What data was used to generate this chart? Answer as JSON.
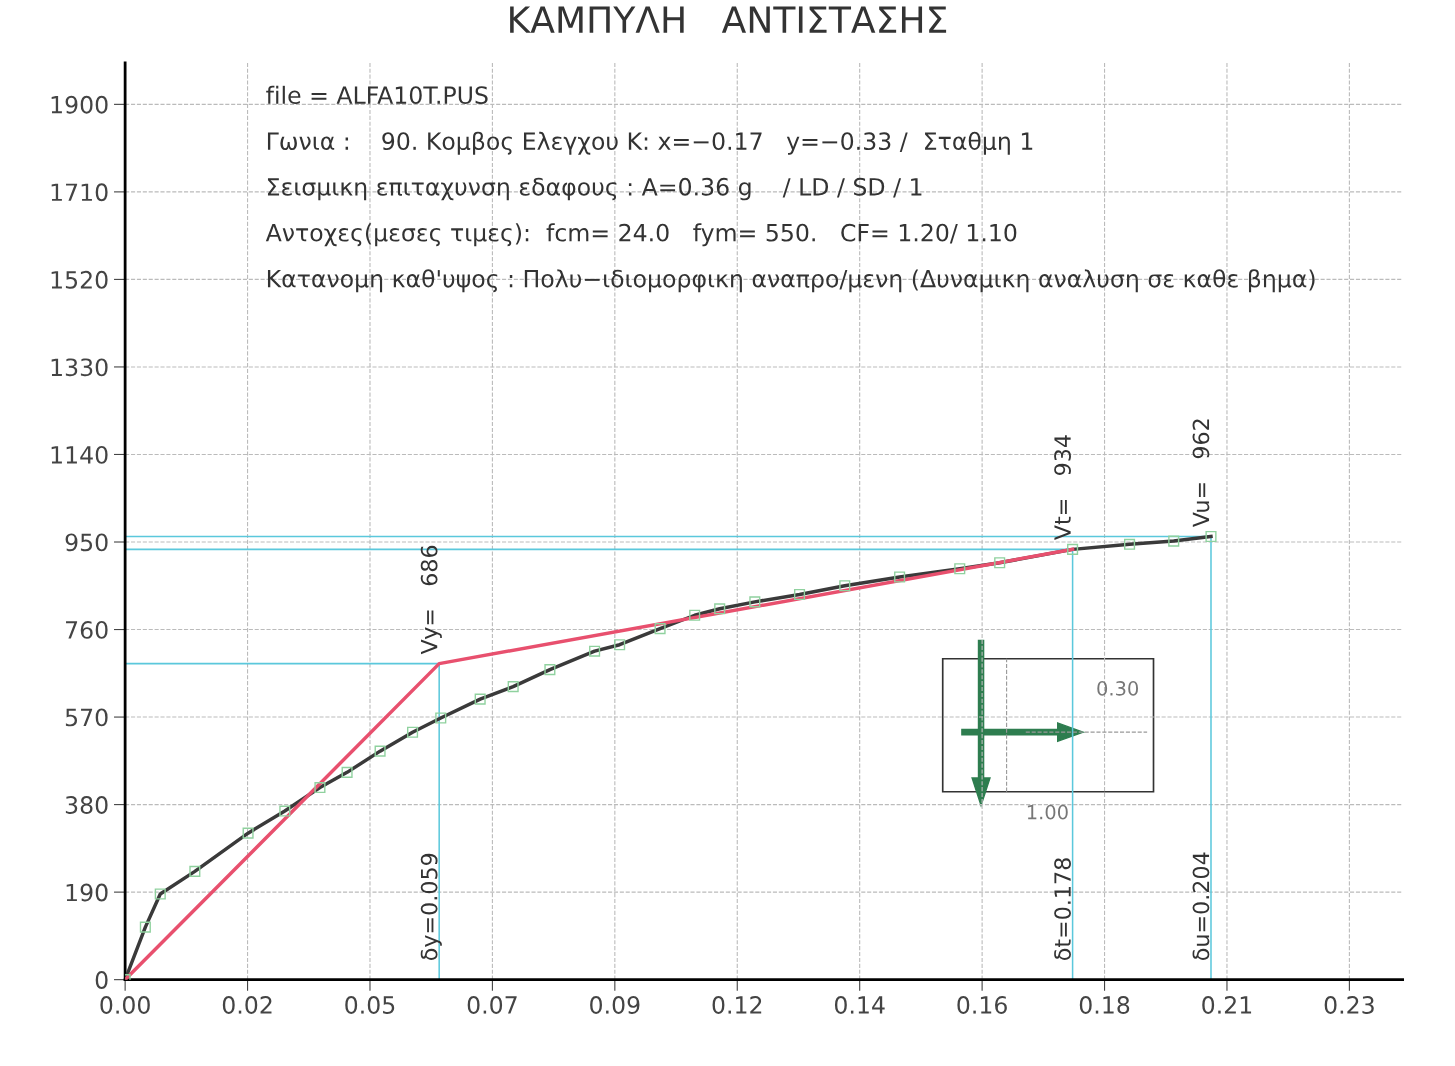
{
  "chart_data": {
    "type": "line",
    "title": "ΚΑΜΠΥΛΗ   ΑΝΤΙΣΤΑΣΗΣ",
    "x": [
      0,
      0.0038,
      0.0066,
      0.0131,
      0.0231,
      0.03,
      0.0366,
      0.0417,
      0.0479,
      0.054,
      0.0593,
      0.0667,
      0.0729,
      0.0798,
      0.0882,
      0.0929,
      0.1005,
      0.107,
      0.1117,
      0.1183,
      0.1267,
      0.1352,
      0.1455,
      0.1568,
      0.1643,
      0.178,
      0.1887,
      0.197,
      0.204
    ],
    "series": [
      {
        "color": "#3a3a3a",
        "marker": "square",
        "values": [
          0,
          114,
          186,
          235,
          318,
          366,
          417,
          450,
          496,
          537,
          568,
          609,
          636,
          673,
          713,
          727,
          762,
          791,
          805,
          820,
          836,
          855,
          874,
          892,
          905,
          934,
          945,
          952,
          962
        ]
      },
      {
        "color": "#e8506e",
        "marker": "none",
        "x": [
          0,
          0.059,
          0.178
        ],
        "values": [
          0,
          686,
          934
        ]
      }
    ],
    "xlim": [
      0,
      0.24
    ],
    "ylim": [
      0,
      1990
    ],
    "xticks": [
      {
        "value": 0,
        "label": "0.00"
      },
      {
        "value": 0.023,
        "label": "0.02"
      },
      {
        "value": 0.046,
        "label": "0.05"
      },
      {
        "value": 0.069,
        "label": "0.07"
      },
      {
        "value": 0.092,
        "label": "0.09"
      },
      {
        "value": 0.115,
        "label": "0.12"
      },
      {
        "value": 0.138,
        "label": "0.14"
      },
      {
        "value": 0.161,
        "label": "0.16"
      },
      {
        "value": 0.184,
        "label": "0.18"
      },
      {
        "value": 0.207,
        "label": "0.21"
      },
      {
        "value": 0.23,
        "label": "0.23"
      }
    ],
    "yticks": [
      0,
      190,
      380,
      570,
      760,
      950,
      1140,
      1330,
      1520,
      1710,
      1900
    ],
    "grid": true,
    "line_style": "solid",
    "annotations": [
      "file = ALFA10T.PUS",
      "Γωνια :    90. Κομβος Ελεγχου K: x=−0.17   y=−0.33 /  Σταθμη 1",
      "Σεισμικη επιταχυνση εδαφους : A=0.36 g    / LD / SD / 1",
      "Αντοχες(μεσες τιμες):  fcm= 24.0   fym= 550.   CF= 1.20/ 1.10",
      "Κατανομη καθ'υψος : Πολυ−ιδιομορφικη αναπρο/μενη (Δυναμικη αναλυση σε καθε βημα)",
      {
        "text": "Vy=   686",
        "x": 0.059,
        "y": 686
      },
      {
        "text": "Vt=   934",
        "x": 0.178,
        "y": 934
      },
      {
        "text": "Vu=   962",
        "x": 0.204,
        "y": 962
      },
      "δy=0.059",
      "δt=0.178",
      "δu=0.204",
      "0.30",
      "1.00"
    ]
  }
}
